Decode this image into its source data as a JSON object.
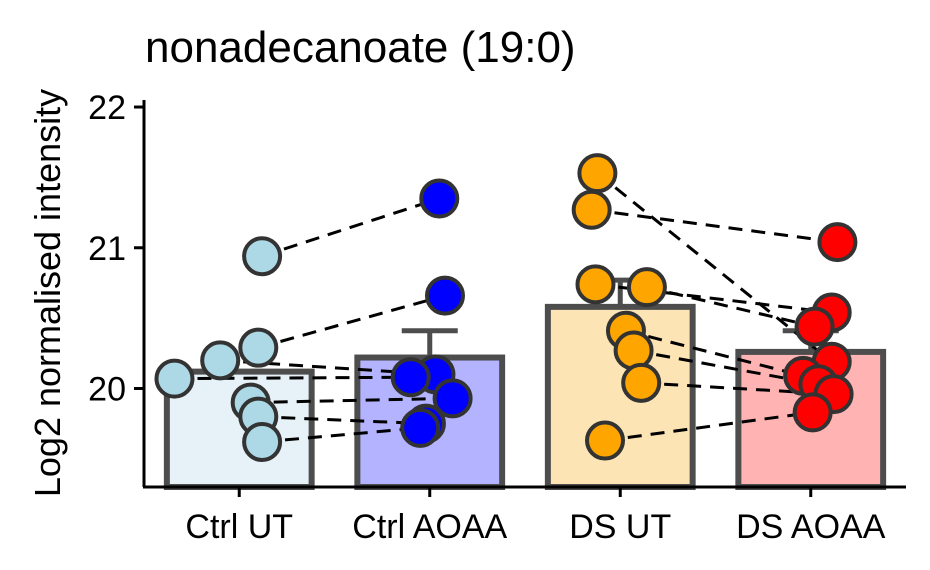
{
  "chart_data": {
    "type": "bar",
    "title": "nonadecanoate (19:0)",
    "xlabel": "",
    "ylabel": "Log2 normalised intensity",
    "ylim": [
      19.3,
      22.05
    ],
    "yticks": [
      20,
      21,
      22
    ],
    "grid": false,
    "legend": "none",
    "categories": [
      "Ctrl UT",
      "Ctrl AOAA",
      "DS UT",
      "DS AOAA"
    ],
    "bar_fill_colors": [
      "#E6F2F8",
      "#B3B3FF",
      "#FCE4B4",
      "#FFB3B3"
    ],
    "point_colors": [
      "#ADD8E6",
      "#0000FF",
      "#FFA500",
      "#FF0000"
    ],
    "bar_values": [
      20.12,
      20.22,
      20.58,
      20.26
    ],
    "error_upper": [
      null,
      20.41,
      20.77,
      20.41
    ],
    "points": [
      [
        20.94,
        20.29,
        20.2,
        20.07,
        19.9,
        19.8,
        19.62
      ],
      [
        21.35,
        20.66,
        20.1,
        20.08,
        19.93,
        19.75,
        19.72
      ],
      [
        21.53,
        21.27,
        20.74,
        20.72,
        20.41,
        20.27,
        20.04,
        19.63
      ],
      [
        21.04,
        20.54,
        20.44,
        20.19,
        20.09,
        20.03,
        19.96,
        19.83
      ]
    ],
    "pairs": [
      [
        [
          0,
          0
        ],
        [
          1,
          0
        ]
      ],
      [
        [
          0,
          1
        ],
        [
          1,
          1
        ]
      ],
      [
        [
          0,
          2
        ],
        [
          1,
          2
        ]
      ],
      [
        [
          0,
          3
        ],
        [
          1,
          3
        ]
      ],
      [
        [
          0,
          4
        ],
        [
          1,
          4
        ]
      ],
      [
        [
          0,
          5
        ],
        [
          1,
          5
        ]
      ],
      [
        [
          0,
          6
        ],
        [
          1,
          6
        ]
      ],
      [
        [
          2,
          0
        ],
        [
          3,
          3
        ]
      ],
      [
        [
          2,
          1
        ],
        [
          3,
          0
        ]
      ],
      [
        [
          2,
          2
        ],
        [
          3,
          1
        ]
      ],
      [
        [
          2,
          3
        ],
        [
          3,
          2
        ]
      ],
      [
        [
          2,
          4
        ],
        [
          3,
          4
        ]
      ],
      [
        [
          2,
          5
        ],
        [
          3,
          5
        ]
      ],
      [
        [
          2,
          6
        ],
        [
          3,
          6
        ]
      ],
      [
        [
          2,
          7
        ],
        [
          3,
          7
        ]
      ]
    ]
  }
}
